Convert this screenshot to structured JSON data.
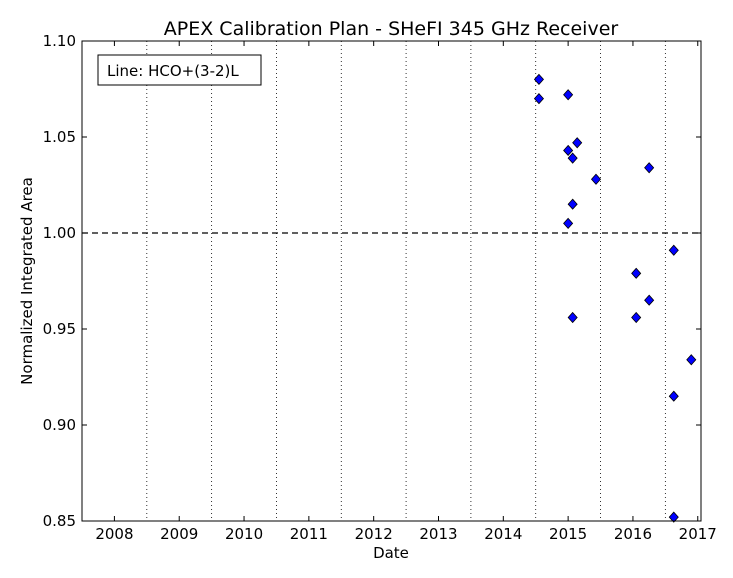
{
  "chart_data": {
    "type": "scatter",
    "title": "APEX Calibration Plan - SHeFI 345 GHz Receiver",
    "xlabel": "Date",
    "ylabel": "Normalized Integrated Area",
    "xlim": [
      2007.5,
      2017.05
    ],
    "ylim": [
      0.85,
      1.1
    ],
    "x_ticks": [
      2008,
      2009,
      2010,
      2011,
      2012,
      2013,
      2014,
      2015,
      2016,
      2017
    ],
    "x_tick_labels": [
      "2008",
      "2009",
      "2010",
      "2011",
      "2012",
      "2013",
      "2014",
      "2015",
      "2016",
      "2017"
    ],
    "y_ticks": [
      0.85,
      0.9,
      0.95,
      1.0,
      1.05,
      1.1
    ],
    "y_tick_labels": [
      "0.85",
      "0.90",
      "0.95",
      "1.00",
      "1.05",
      "1.10"
    ],
    "vertical_grid_at": [
      2008.5,
      2009.5,
      2010.5,
      2011.5,
      2012.5,
      2013.5,
      2014.5,
      2015.5,
      2016.5
    ],
    "reference_line_y": 1.0,
    "legend_text": "Line: HCO+(3-2)L",
    "legend_position": "top-left",
    "marker_color": "#0000ff",
    "marker_shape": "diamond",
    "points": [
      {
        "x": 2014.55,
        "y": 1.08
      },
      {
        "x": 2014.55,
        "y": 1.07
      },
      {
        "x": 2015.0,
        "y": 1.072
      },
      {
        "x": 2015.0,
        "y": 1.043
      },
      {
        "x": 2015.07,
        "y": 1.039
      },
      {
        "x": 2015.14,
        "y": 1.047
      },
      {
        "x": 2015.07,
        "y": 1.015
      },
      {
        "x": 2015.0,
        "y": 1.005
      },
      {
        "x": 2015.07,
        "y": 0.956
      },
      {
        "x": 2015.43,
        "y": 1.028
      },
      {
        "x": 2016.05,
        "y": 0.979
      },
      {
        "x": 2016.05,
        "y": 0.956
      },
      {
        "x": 2016.25,
        "y": 1.034
      },
      {
        "x": 2016.25,
        "y": 0.965
      },
      {
        "x": 2016.63,
        "y": 0.991
      },
      {
        "x": 2016.63,
        "y": 0.915
      },
      {
        "x": 2016.63,
        "y": 0.852
      },
      {
        "x": 2016.9,
        "y": 0.934
      }
    ]
  }
}
